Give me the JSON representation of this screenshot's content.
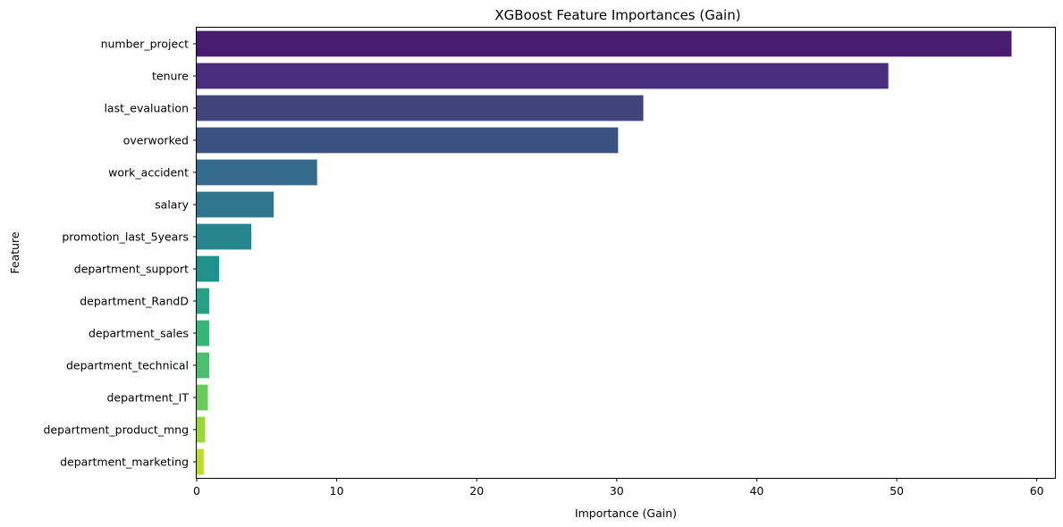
{
  "chart_data": {
    "type": "bar",
    "orientation": "horizontal",
    "title": "XGBoost Feature Importances (Gain)",
    "xlabel": "Importance (Gain)",
    "ylabel": "Feature",
    "xlim": [
      0,
      61.3
    ],
    "xticks": [
      0,
      10,
      20,
      30,
      40,
      50,
      60
    ],
    "grid": false,
    "categories": [
      "number_project",
      "tenure",
      "last_evaluation",
      "overworked",
      "work_accident",
      "salary",
      "promotion_last_5years",
      "department_support",
      "department_RandD",
      "department_sales",
      "department_technical",
      "department_IT",
      "department_product_mng",
      "department_marketing"
    ],
    "values": [
      58.2,
      49.4,
      31.9,
      30.1,
      8.6,
      5.5,
      3.9,
      1.6,
      0.9,
      0.9,
      0.9,
      0.8,
      0.6,
      0.5
    ],
    "colors": [
      "#481d6f",
      "#472f7d",
      "#41447a",
      "#3b5280",
      "#356b8c",
      "#2e758e",
      "#28848d",
      "#21918c",
      "#25a085",
      "#35b779",
      "#4cbd71",
      "#6cc95b",
      "#9bd43d",
      "#bade28"
    ]
  }
}
